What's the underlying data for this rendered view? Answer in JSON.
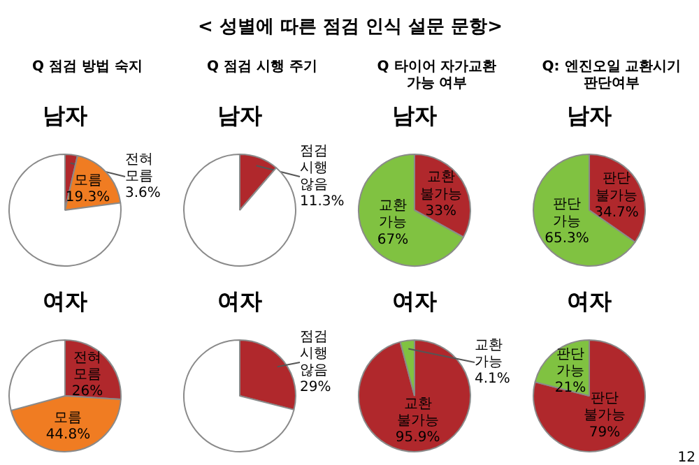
{
  "chart_data": [
    {
      "type": "other",
      "title": "< 성별에 따른 점검 인식 설문 문항>"
    },
    {
      "type": "pie",
      "title": "Q 점검 방법 숙지",
      "subtitle": "남자",
      "categories": [
        "전혀 모름",
        "모름",
        null
      ],
      "values": [
        3.6,
        19.3,
        77.1
      ],
      "colors": [
        "#b0282c",
        "#f07c22",
        "#ffffff"
      ],
      "value_labels": [
        "3.6%",
        "19.3%",
        null
      ]
    },
    {
      "type": "pie",
      "subtitle": "여자",
      "categories": [
        "전혀 모름",
        "모름",
        null
      ],
      "values": [
        26,
        44.8,
        29.2
      ],
      "colors": [
        "#b0282c",
        "#f07c22",
        "#ffffff"
      ],
      "value_labels": [
        "26%",
        "44.8%",
        null
      ]
    },
    {
      "type": "pie",
      "title": "Q 점검 시행 주기",
      "subtitle": "남자",
      "categories": [
        "점검 시행 않음",
        null
      ],
      "values": [
        11.3,
        88.7
      ],
      "colors": [
        "#b0282c",
        "#ffffff"
      ],
      "value_labels": [
        "11.3%",
        null
      ]
    },
    {
      "type": "pie",
      "subtitle": "여자",
      "categories": [
        "점검 시행 않음",
        null
      ],
      "values": [
        29,
        71
      ],
      "colors": [
        "#b0282c",
        "#ffffff"
      ],
      "value_labels": [
        "29%",
        null
      ]
    },
    {
      "type": "pie",
      "title": "Q 타이어 자가교환 가능 여부",
      "subtitle": "남자",
      "categories": [
        "교환 불가능",
        "교환 가능"
      ],
      "values": [
        33,
        67
      ],
      "colors": [
        "#b0282c",
        "#80c241"
      ],
      "value_labels": [
        "33%",
        "67%"
      ]
    },
    {
      "type": "pie",
      "subtitle": "여자",
      "categories": [
        "교환 불가능",
        "교환 가능"
      ],
      "values": [
        95.9,
        4.1
      ],
      "colors": [
        "#b0282c",
        "#80c241"
      ],
      "value_labels": [
        "95.9%",
        "4.1%"
      ]
    },
    {
      "type": "pie",
      "title": "Q: 엔진오일 교환시기 판단여부",
      "subtitle": "남자",
      "categories": [
        "판단 불가능",
        "판단 가능"
      ],
      "values": [
        34.7,
        65.3
      ],
      "colors": [
        "#b0282c",
        "#80c241"
      ],
      "value_labels": [
        "34.7%",
        "65.3%"
      ]
    },
    {
      "type": "pie",
      "subtitle": "여자",
      "categories": [
        "판단 불가능",
        "판단 가능"
      ],
      "values": [
        79,
        21
      ],
      "colors": [
        "#b0282c",
        "#80c241"
      ],
      "value_labels": [
        "79%",
        "21%"
      ],
      "annotations": [
        "12"
      ]
    }
  ]
}
